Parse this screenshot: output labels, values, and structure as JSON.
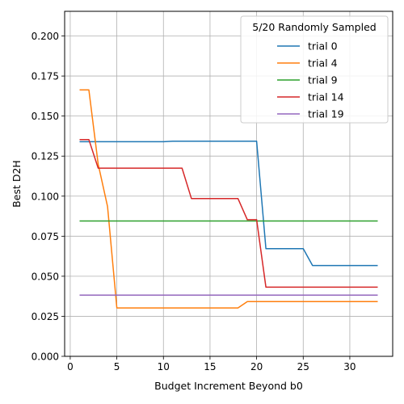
{
  "chart_data": {
    "type": "line",
    "title": "",
    "xlabel": "Budget Increment Beyond b0",
    "ylabel": "Best D2H",
    "xlim": [
      -0.6,
      34.6
    ],
    "ylim": [
      0.0,
      0.2154
    ],
    "xticks": [
      0,
      5,
      10,
      15,
      20,
      25,
      30
    ],
    "xtick_labels": [
      "0",
      "5",
      "10",
      "15",
      "20",
      "25",
      "30"
    ],
    "yticks": [
      0.0,
      0.025,
      0.05,
      0.075,
      0.1,
      0.125,
      0.15,
      0.175,
      0.2
    ],
    "ytick_labels": [
      "0.000",
      "0.025",
      "0.050",
      "0.075",
      "0.100",
      "0.125",
      "0.150",
      "0.175",
      "0.200"
    ],
    "grid": true,
    "legend": {
      "title": "5/20 Randomly Sampled",
      "placement": "top-right"
    },
    "series": [
      {
        "name": "trial 0",
        "color": "#1f77b4",
        "x": [
          1,
          2,
          3,
          4,
          5,
          6,
          7,
          8,
          9,
          10,
          11,
          12,
          13,
          14,
          15,
          16,
          17,
          18,
          19,
          20,
          21,
          22,
          23,
          24,
          25,
          26,
          27,
          28,
          29,
          30,
          31,
          32,
          33
        ],
        "values": [
          0.134,
          0.134,
          0.134,
          0.134,
          0.134,
          0.134,
          0.134,
          0.134,
          0.134,
          0.134,
          0.1343,
          0.1343,
          0.1343,
          0.1343,
          0.1343,
          0.1343,
          0.1343,
          0.1343,
          0.1343,
          0.1343,
          0.0672,
          0.0672,
          0.0672,
          0.0672,
          0.0672,
          0.0567,
          0.0567,
          0.0567,
          0.0567,
          0.0567,
          0.0567,
          0.0567,
          0.0567
        ]
      },
      {
        "name": "trial 4",
        "color": "#ff7f0e",
        "x": [
          1,
          2,
          3,
          4,
          5,
          6,
          7,
          8,
          9,
          10,
          11,
          12,
          13,
          14,
          15,
          16,
          17,
          18,
          19,
          20,
          21,
          22,
          23,
          24,
          25,
          26,
          27,
          28,
          29,
          30,
          31,
          32,
          33
        ],
        "values": [
          0.1663,
          0.1663,
          0.12,
          0.0935,
          0.0302,
          0.0302,
          0.0302,
          0.0302,
          0.0302,
          0.0302,
          0.0302,
          0.0302,
          0.0302,
          0.0302,
          0.0302,
          0.0302,
          0.0302,
          0.0302,
          0.0342,
          0.0342,
          0.0342,
          0.0342,
          0.0342,
          0.0342,
          0.0342,
          0.0342,
          0.0342,
          0.0342,
          0.0342,
          0.0342,
          0.0342,
          0.0342,
          0.0342
        ]
      },
      {
        "name": "trial 9",
        "color": "#2ca02c",
        "x": [
          1,
          2,
          3,
          4,
          5,
          6,
          7,
          8,
          9,
          10,
          11,
          12,
          13,
          14,
          15,
          16,
          17,
          18,
          19,
          20,
          21,
          22,
          23,
          24,
          25,
          26,
          27,
          28,
          29,
          30,
          31,
          32,
          33
        ],
        "values": [
          0.0845,
          0.0845,
          0.0845,
          0.0845,
          0.0845,
          0.0845,
          0.0845,
          0.0845,
          0.0845,
          0.0845,
          0.0845,
          0.0845,
          0.0845,
          0.0845,
          0.0845,
          0.0845,
          0.0845,
          0.0845,
          0.0845,
          0.0845,
          0.0845,
          0.0845,
          0.0845,
          0.0845,
          0.0845,
          0.0845,
          0.0845,
          0.0845,
          0.0845,
          0.0845,
          0.0845,
          0.0845,
          0.0845
        ]
      },
      {
        "name": "trial 14",
        "color": "#d62728",
        "x": [
          1,
          2,
          3,
          4,
          5,
          6,
          7,
          8,
          9,
          10,
          11,
          12,
          13,
          14,
          15,
          16,
          17,
          18,
          19,
          20,
          21,
          22,
          23,
          24,
          25,
          26,
          27,
          28,
          29,
          30,
          31,
          32,
          33
        ],
        "values": [
          0.1353,
          0.1353,
          0.1175,
          0.1175,
          0.1175,
          0.1175,
          0.1175,
          0.1175,
          0.1175,
          0.1175,
          0.1175,
          0.1175,
          0.0985,
          0.0985,
          0.0985,
          0.0985,
          0.0985,
          0.0985,
          0.0853,
          0.0853,
          0.0432,
          0.0432,
          0.0432,
          0.0432,
          0.0432,
          0.0432,
          0.0432,
          0.0432,
          0.0432,
          0.0432,
          0.0432,
          0.0432,
          0.0432
        ]
      },
      {
        "name": "trial 19",
        "color": "#9467bd",
        "x": [
          1,
          2,
          3,
          4,
          5,
          6,
          7,
          8,
          9,
          10,
          11,
          12,
          13,
          14,
          15,
          16,
          17,
          18,
          19,
          20,
          21,
          22,
          23,
          24,
          25,
          26,
          27,
          28,
          29,
          30,
          31,
          32,
          33
        ],
        "values": [
          0.0382,
          0.0382,
          0.0382,
          0.0382,
          0.0382,
          0.0382,
          0.0382,
          0.0382,
          0.0382,
          0.0382,
          0.0382,
          0.0382,
          0.0382,
          0.0382,
          0.0382,
          0.0382,
          0.0382,
          0.0382,
          0.0382,
          0.0382,
          0.0382,
          0.0382,
          0.0382,
          0.0382,
          0.0382,
          0.0382,
          0.0382,
          0.0382,
          0.0382,
          0.0382,
          0.0382,
          0.0382,
          0.0382
        ]
      }
    ]
  }
}
